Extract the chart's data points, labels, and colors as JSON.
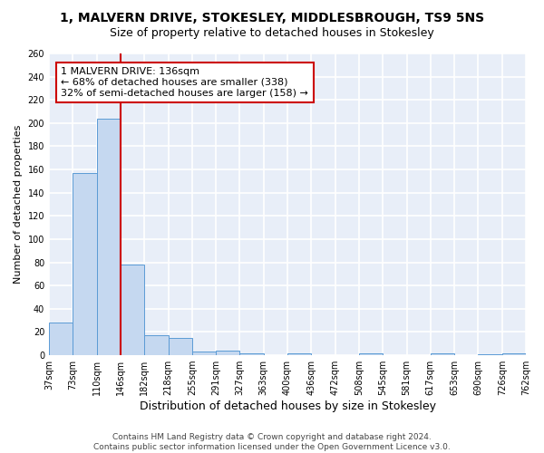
{
  "title": "1, MALVERN DRIVE, STOKESLEY, MIDDLESBROUGH, TS9 5NS",
  "subtitle": "Size of property relative to detached houses in Stokesley",
  "xlabel": "Distribution of detached houses by size in Stokesley",
  "ylabel": "Number of detached properties",
  "bar_values": [
    28,
    157,
    204,
    78,
    17,
    15,
    3,
    4,
    2,
    0,
    2,
    0,
    0,
    2,
    0,
    0,
    2,
    0,
    1,
    2
  ],
  "tick_labels": [
    "37sqm",
    "73sqm",
    "110sqm",
    "146sqm",
    "182sqm",
    "218sqm",
    "255sqm",
    "291sqm",
    "327sqm",
    "363sqm",
    "400sqm",
    "436sqm",
    "472sqm",
    "508sqm",
    "545sqm",
    "581sqm",
    "617sqm",
    "653sqm",
    "690sqm",
    "726sqm",
    "762sqm"
  ],
  "bar_color": "#c5d8f0",
  "bar_edge_color": "#5b9bd5",
  "property_line_color": "#cc0000",
  "property_line_bin": 3,
  "annotation_text": "1 MALVERN DRIVE: 136sqm\n← 68% of detached houses are smaller (338)\n32% of semi-detached houses are larger (158) →",
  "annotation_box_color": "white",
  "annotation_box_edge": "#cc0000",
  "ylim": [
    0,
    260
  ],
  "yticks": [
    0,
    20,
    40,
    60,
    80,
    100,
    120,
    140,
    160,
    180,
    200,
    220,
    240,
    260
  ],
  "bg_color": "#e8eef8",
  "grid_color": "white",
  "footer": "Contains HM Land Registry data © Crown copyright and database right 2024.\nContains public sector information licensed under the Open Government Licence v3.0.",
  "title_fontsize": 10,
  "subtitle_fontsize": 9,
  "xlabel_fontsize": 9,
  "ylabel_fontsize": 8,
  "tick_fontsize": 7,
  "annot_fontsize": 8,
  "footer_fontsize": 6.5
}
